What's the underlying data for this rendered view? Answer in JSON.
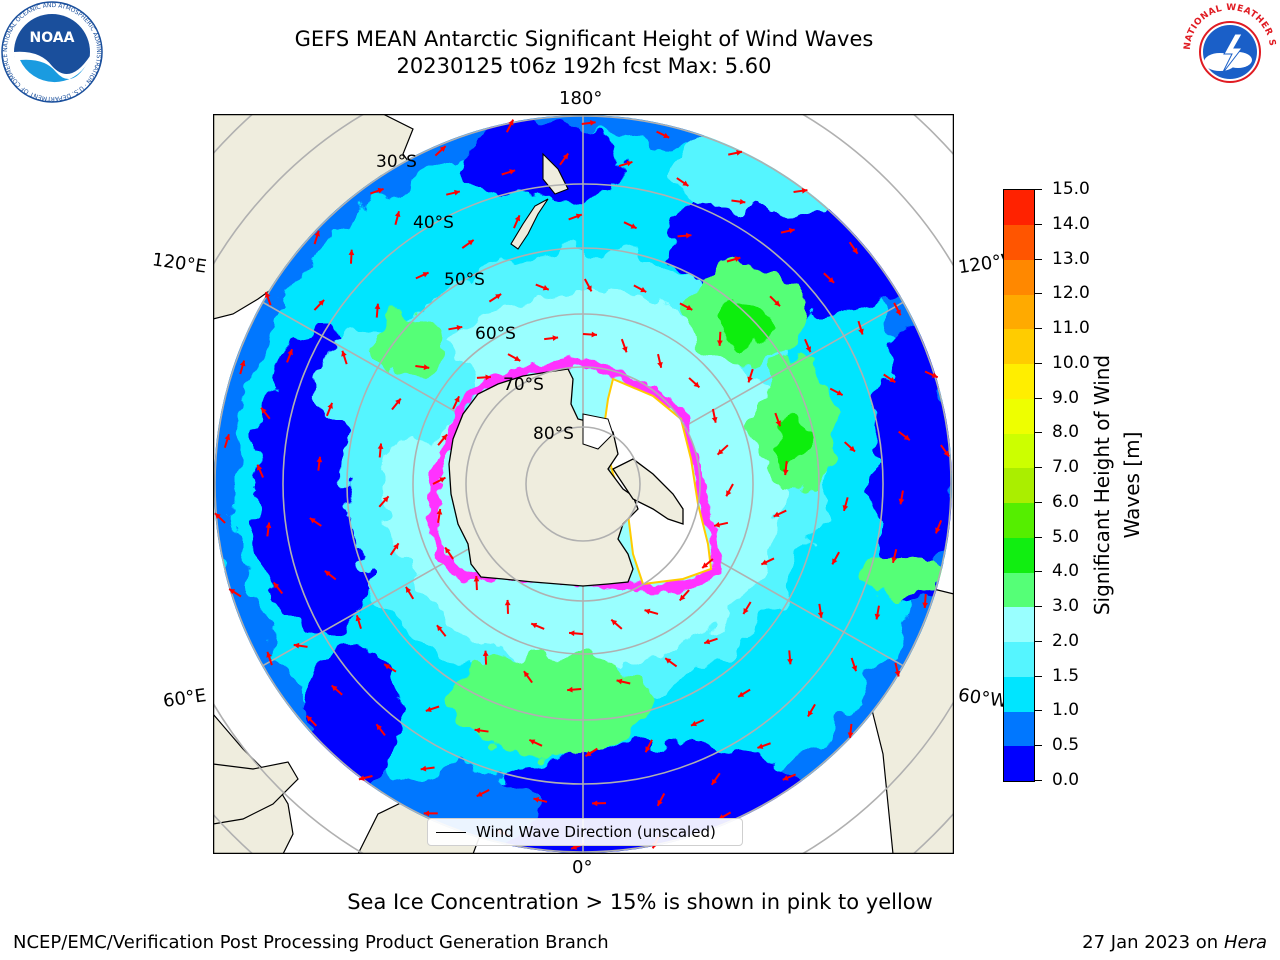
{
  "title": {
    "line1": "GEFS MEAN Antarctic Significant Height of Wind Waves",
    "line2": "20230125 t06z 192h fcst   Max: 5.60"
  },
  "map": {
    "longitude_labels": {
      "top": "180°",
      "bottom": "0°",
      "left_upper": "120°E",
      "left_lower": "60°E",
      "right_upper": "120°W",
      "right_lower": "60°W"
    },
    "latitude_labels": [
      "30°S",
      "40°S",
      "50°S",
      "60°S",
      "70°S",
      "80°S"
    ],
    "legend": "Wind Wave Direction (unscaled)",
    "colors": {
      "land": "#efedde",
      "ice": "#ffffff",
      "ice_edge": "#ff33ff",
      "arrow": "#ff0000",
      "grid": "#b0b0b0"
    }
  },
  "colorbar": {
    "title_line1": "Significant Height of Wind",
    "title_line2": "Waves [m]",
    "tick_labels": [
      "0.0",
      "0.5",
      "1.0",
      "1.5",
      "2.0",
      "3.0",
      "4.0",
      "5.0",
      "6.0",
      "7.0",
      "8.0",
      "9.0",
      "10.0",
      "11.0",
      "12.0",
      "13.0",
      "14.0",
      "15.0"
    ],
    "colors": [
      "#0000ff",
      "#0077ff",
      "#00e5ff",
      "#55f5ff",
      "#99ffff",
      "#55ff77",
      "#11ee11",
      "#55ee00",
      "#aaee00",
      "#ccff00",
      "#eeff00",
      "#ffee00",
      "#ffcc00",
      "#ffaa00",
      "#ff8800",
      "#ff5500",
      "#ff2200"
    ]
  },
  "footnote": "Sea Ice Concentration > 15% is shown in pink to yellow",
  "credit": {
    "left": "NCEP/EMC/Verification Post Processing Product Generation Branch",
    "right_prefix": "27 Jan 2023 on ",
    "right_host": "Hera"
  },
  "logos": {
    "noaa_text": "NOAA",
    "noaa_ring_text": "NATIONAL OCEANIC AND ATMOSPHERIC ADMINISTRATION · U.S. DEPARTMENT OF COMMERCE",
    "nws_ring_text": "NATIONAL WEATHER SERVICE"
  }
}
